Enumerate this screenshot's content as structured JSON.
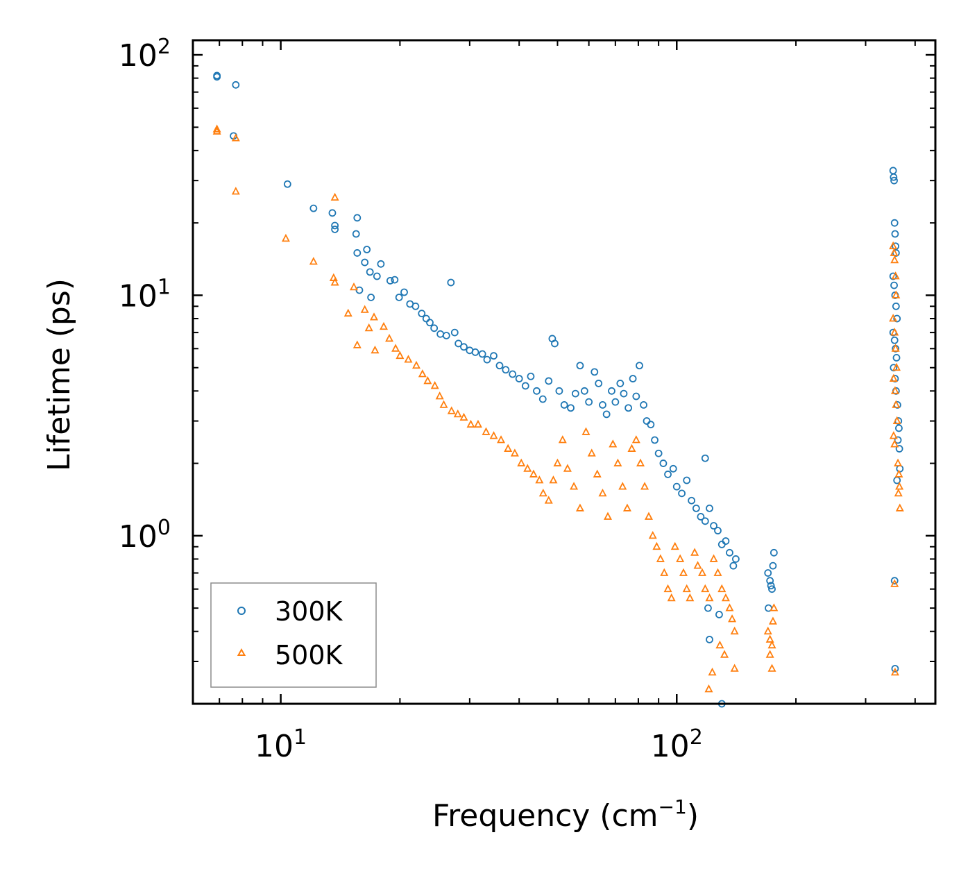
{
  "chart_data": {
    "type": "scatter",
    "title": "",
    "xlabel": "Frequency (cm",
    "xlabel_sup": "−1",
    "xlabel_suffix": ")",
    "ylabel": "Lifetime (ps)",
    "xscale": "log",
    "yscale": "log",
    "xlim": [
      6.0,
      450
    ],
    "ylim": [
      0.2,
      115
    ],
    "x_ticks": [
      {
        "base": "10",
        "exp": "1",
        "value": 10
      },
      {
        "base": "10",
        "exp": "2",
        "value": 100
      }
    ],
    "y_ticks": [
      {
        "base": "10",
        "exp": "0",
        "value": 1
      },
      {
        "base": "10",
        "exp": "1",
        "value": 10
      },
      {
        "base": "10",
        "exp": "2",
        "value": 100
      }
    ],
    "legend_position": "lower-left",
    "series": [
      {
        "name": "300K",
        "marker": "circle",
        "color": "#1f77b4",
        "points": [
          [
            6.9,
            81
          ],
          [
            6.9,
            82
          ],
          [
            7.7,
            75
          ],
          [
            7.6,
            46
          ],
          [
            10.4,
            29
          ],
          [
            12.1,
            23
          ],
          [
            13.5,
            22
          ],
          [
            13.7,
            19.5
          ],
          [
            13.7,
            18.8
          ],
          [
            15.5,
            18
          ],
          [
            15.6,
            21
          ],
          [
            15.6,
            15
          ],
          [
            16.5,
            15.5
          ],
          [
            16.8,
            12.5
          ],
          [
            16.3,
            13.7
          ],
          [
            15.8,
            10.5
          ],
          [
            16.9,
            9.8
          ],
          [
            17.5,
            12
          ],
          [
            17.9,
            13.5
          ],
          [
            18.9,
            11.5
          ],
          [
            19.4,
            11.6
          ],
          [
            19.9,
            9.8
          ],
          [
            20.5,
            10.3
          ],
          [
            21.2,
            9.2
          ],
          [
            21.9,
            9.0
          ],
          [
            22.7,
            8.4
          ],
          [
            23.3,
            8.0
          ],
          [
            23.8,
            7.7
          ],
          [
            24.4,
            7.3
          ],
          [
            25.3,
            6.9
          ],
          [
            26.2,
            6.8
          ],
          [
            26.9,
            11.3
          ],
          [
            27.5,
            7.0
          ],
          [
            28.1,
            6.3
          ],
          [
            29.0,
            6.1
          ],
          [
            30.0,
            5.9
          ],
          [
            31.0,
            5.8
          ],
          [
            32.3,
            5.7
          ],
          [
            33.2,
            5.4
          ],
          [
            34.5,
            5.6
          ],
          [
            35.7,
            5.1
          ],
          [
            37.0,
            4.9
          ],
          [
            38.5,
            4.7
          ],
          [
            40.0,
            4.5
          ],
          [
            41.5,
            4.2
          ],
          [
            42.8,
            4.6
          ],
          [
            44.3,
            4.0
          ],
          [
            45.9,
            3.7
          ],
          [
            47.5,
            4.4
          ],
          [
            48.5,
            6.6
          ],
          [
            49.2,
            6.3
          ],
          [
            50.5,
            4.0
          ],
          [
            52.0,
            3.5
          ],
          [
            54.0,
            3.4
          ],
          [
            55.5,
            3.9
          ],
          [
            57.0,
            5.1
          ],
          [
            58.5,
            4.0
          ],
          [
            60.0,
            3.6
          ],
          [
            62.0,
            4.8
          ],
          [
            63.5,
            4.3
          ],
          [
            65.0,
            3.5
          ],
          [
            66.5,
            3.2
          ],
          [
            68.5,
            4.0
          ],
          [
            70.0,
            3.6
          ],
          [
            72.0,
            4.3
          ],
          [
            73.5,
            3.9
          ],
          [
            75.5,
            3.4
          ],
          [
            77.5,
            4.5
          ],
          [
            79.0,
            3.8
          ],
          [
            80.5,
            5.1
          ],
          [
            82.5,
            3.5
          ],
          [
            84.0,
            3.0
          ],
          [
            86.0,
            2.9
          ],
          [
            88.0,
            2.5
          ],
          [
            90.0,
            2.2
          ],
          [
            92.5,
            2.0
          ],
          [
            95.0,
            1.8
          ],
          [
            98.0,
            1.9
          ],
          [
            100.0,
            1.6
          ],
          [
            103.0,
            1.5
          ],
          [
            106.0,
            1.7
          ],
          [
            109.0,
            1.4
          ],
          [
            112.0,
            1.3
          ],
          [
            115.0,
            1.2
          ],
          [
            118.0,
            1.15
          ],
          [
            121.0,
            1.3
          ],
          [
            124.0,
            1.1
          ],
          [
            127.0,
            1.05
          ],
          [
            130.0,
            0.92
          ],
          [
            133.0,
            0.95
          ],
          [
            136.0,
            0.85
          ],
          [
            139.0,
            0.75
          ],
          [
            141.0,
            0.8
          ],
          [
            118.0,
            2.1
          ],
          [
            120.0,
            0.5
          ],
          [
            121.0,
            0.37
          ],
          [
            128.0,
            0.47
          ],
          [
            130.0,
            0.2
          ],
          [
            170.0,
            0.7
          ],
          [
            172.0,
            0.65
          ],
          [
            173.0,
            0.62
          ],
          [
            175.0,
            0.75
          ],
          [
            176.0,
            0.85
          ],
          [
            174.0,
            0.6
          ],
          [
            170.5,
            0.5
          ],
          [
            352.0,
            33
          ],
          [
            353.0,
            31
          ],
          [
            354.0,
            30
          ],
          [
            355.0,
            20
          ],
          [
            356.0,
            18
          ],
          [
            357.0,
            16
          ],
          [
            358.0,
            15
          ],
          [
            352.0,
            12
          ],
          [
            354.0,
            11
          ],
          [
            356.0,
            10
          ],
          [
            358.0,
            9
          ],
          [
            360.0,
            8
          ],
          [
            352.0,
            7
          ],
          [
            355.0,
            6.5
          ],
          [
            357.0,
            6
          ],
          [
            359.0,
            5.5
          ],
          [
            353.0,
            5
          ],
          [
            356.0,
            4.5
          ],
          [
            358.0,
            4
          ],
          [
            361.0,
            3.5
          ],
          [
            363.0,
            3.0
          ],
          [
            364.0,
            2.8
          ],
          [
            362.0,
            2.5
          ],
          [
            365.0,
            2.3
          ],
          [
            366.0,
            1.9
          ],
          [
            360.0,
            1.7
          ],
          [
            355.0,
            0.65
          ],
          [
            356.0,
            0.28
          ]
        ]
      },
      {
        "name": "500K",
        "marker": "triangle",
        "color": "#ff7f0e",
        "points": [
          [
            6.9,
            48
          ],
          [
            6.9,
            49
          ],
          [
            7.7,
            27
          ],
          [
            7.7,
            45
          ],
          [
            10.3,
            17.2
          ],
          [
            12.1,
            13.8
          ],
          [
            13.6,
            11.8
          ],
          [
            13.7,
            11.3
          ],
          [
            13.7,
            25.5
          ],
          [
            15.3,
            10.8
          ],
          [
            14.8,
            8.4
          ],
          [
            16.3,
            8.7
          ],
          [
            17.2,
            8.1
          ],
          [
            15.6,
            6.2
          ],
          [
            16.7,
            7.3
          ],
          [
            17.3,
            5.9
          ],
          [
            18.2,
            7.4
          ],
          [
            18.8,
            6.6
          ],
          [
            19.5,
            6.0
          ],
          [
            20.0,
            5.6
          ],
          [
            21.0,
            5.4
          ],
          [
            22.0,
            5.1
          ],
          [
            22.8,
            4.7
          ],
          [
            23.5,
            4.4
          ],
          [
            24.5,
            4.2
          ],
          [
            25.2,
            3.8
          ],
          [
            25.8,
            3.5
          ],
          [
            27.0,
            3.3
          ],
          [
            28.0,
            3.2
          ],
          [
            29.0,
            3.1
          ],
          [
            30.2,
            2.9
          ],
          [
            31.5,
            2.9
          ],
          [
            33.0,
            2.7
          ],
          [
            34.5,
            2.6
          ],
          [
            36.0,
            2.5
          ],
          [
            37.5,
            2.3
          ],
          [
            39.0,
            2.2
          ],
          [
            40.5,
            2.0
          ],
          [
            42.0,
            1.9
          ],
          [
            43.5,
            1.8
          ],
          [
            45.0,
            1.7
          ],
          [
            46.0,
            1.5
          ],
          [
            47.5,
            1.4
          ],
          [
            48.8,
            1.7
          ],
          [
            50.0,
            2.0
          ],
          [
            51.5,
            2.5
          ],
          [
            53.0,
            1.9
          ],
          [
            55.0,
            1.6
          ],
          [
            57.0,
            1.3
          ],
          [
            59.0,
            2.7
          ],
          [
            61.0,
            2.2
          ],
          [
            63.0,
            1.8
          ],
          [
            65.0,
            1.5
          ],
          [
            67.0,
            1.2
          ],
          [
            69.0,
            2.4
          ],
          [
            71.0,
            2.0
          ],
          [
            73.0,
            1.6
          ],
          [
            75.0,
            1.3
          ],
          [
            77.0,
            2.3
          ],
          [
            79.0,
            2.5
          ],
          [
            81.0,
            2.0
          ],
          [
            83.0,
            1.6
          ],
          [
            85.0,
            1.2
          ],
          [
            87.0,
            1.0
          ],
          [
            89.0,
            0.9
          ],
          [
            91.0,
            0.8
          ],
          [
            93.0,
            0.7
          ],
          [
            95.0,
            0.6
          ],
          [
            97.0,
            0.55
          ],
          [
            99.0,
            0.9
          ],
          [
            102.0,
            0.8
          ],
          [
            104.0,
            0.7
          ],
          [
            106.0,
            0.6
          ],
          [
            108.0,
            0.55
          ],
          [
            111.0,
            0.85
          ],
          [
            113.0,
            0.75
          ],
          [
            116.0,
            0.7
          ],
          [
            118.0,
            0.6
          ],
          [
            121.0,
            0.55
          ],
          [
            124.0,
            0.8
          ],
          [
            127.0,
            0.7
          ],
          [
            130.0,
            0.6
          ],
          [
            133.0,
            0.55
          ],
          [
            136.0,
            0.5
          ],
          [
            138.0,
            0.45
          ],
          [
            140.0,
            0.4
          ],
          [
            128.5,
            0.35
          ],
          [
            120.5,
            0.23
          ],
          [
            123.0,
            0.27
          ],
          [
            132.0,
            0.32
          ],
          [
            140.0,
            0.28
          ],
          [
            170.0,
            0.4
          ],
          [
            172.0,
            0.37
          ],
          [
            174.0,
            0.35
          ],
          [
            175.0,
            0.44
          ],
          [
            176.0,
            0.5
          ],
          [
            172.0,
            0.32
          ],
          [
            174.0,
            0.28
          ],
          [
            352.0,
            16
          ],
          [
            354.0,
            15
          ],
          [
            355.0,
            14
          ],
          [
            357.0,
            12
          ],
          [
            358.0,
            10
          ],
          [
            352.0,
            8
          ],
          [
            355.0,
            7
          ],
          [
            357.0,
            6
          ],
          [
            359.0,
            5
          ],
          [
            353.0,
            4.5
          ],
          [
            356.0,
            4
          ],
          [
            358.0,
            3.5
          ],
          [
            360.0,
            3
          ],
          [
            353.0,
            2.6
          ],
          [
            355.0,
            2.4
          ],
          [
            362.0,
            2.0
          ],
          [
            364.0,
            1.8
          ],
          [
            365.0,
            1.6
          ],
          [
            366.0,
            1.3
          ],
          [
            363.0,
            1.5
          ],
          [
            355.0,
            0.63
          ],
          [
            356.0,
            0.27
          ]
        ]
      }
    ]
  }
}
